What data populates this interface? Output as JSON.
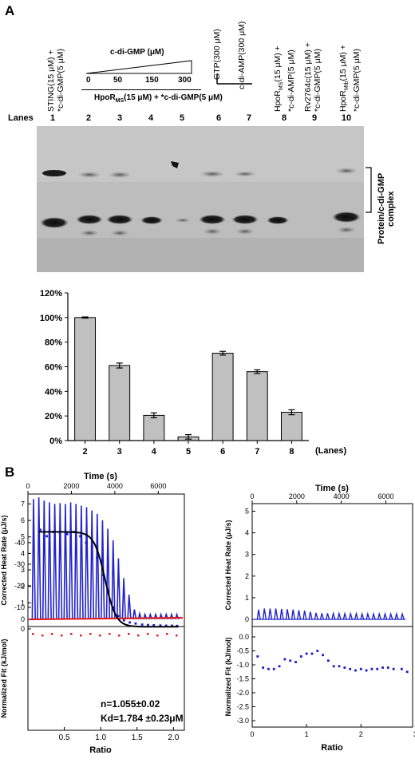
{
  "panel_a": {
    "label": "A",
    "lane_headers": [
      {
        "line1": "STING(15 μM) +",
        "line2": "*c-di-GMP(5 μM)"
      },
      {
        "line1": "GTP(300 μM)",
        "line2": ""
      },
      {
        "line1": "c-di-AMP(300 μM)",
        "line2": ""
      },
      {
        "line1": "HpoR",
        "sub": "MS",
        "rest": "(15 μM) +",
        "line2": "*c-di-AMP(5 μM)"
      },
      {
        "line1": "Rv2764c(15 μM) +",
        "line2": "*c-di-GMP(5 μM)"
      },
      {
        "line1": "HpoR",
        "sub": "Mtb",
        "rest": "(15 μM) +",
        "line2": "*c-di-GMP(5 μM)"
      }
    ],
    "titration_title": "c-di-GMP (μM)",
    "titration_ticks": [
      "0",
      "50",
      "150",
      "300"
    ],
    "group_label_pre": "HpoR",
    "group_label_sub": "MS",
    "group_label_post": "(15 μM) + *c-di-GMP(5 μM)",
    "lanes_label": "Lanes",
    "lane_numbers": [
      "1",
      "2",
      "3",
      "4",
      "5",
      "6",
      "7",
      "8",
      "9",
      "10"
    ],
    "complex_label_1": "Protein/c-di-GMP",
    "complex_label_2": "complex"
  },
  "chart_data": [
    {
      "type": "bar",
      "categories": [
        "2",
        "3",
        "4",
        "5",
        "6",
        "7",
        "8"
      ],
      "values": [
        100,
        61,
        20.5,
        3,
        71,
        56,
        23
      ],
      "errors": [
        0.5,
        2,
        2,
        1.8,
        1.5,
        1.5,
        2
      ],
      "yticks": [
        "0%",
        "20%",
        "40%",
        "60%",
        "80%",
        "100%",
        "120%"
      ],
      "ylim": [
        0,
        120
      ],
      "xlabel": "(Lanes)",
      "bar_color": "#c0c0c0"
    }
  ],
  "panel_b": {
    "label": "B",
    "time_label": "Time (s)",
    "time_ticks": [
      "0",
      "2000",
      "4000",
      "6000"
    ],
    "left": {
      "raw_ylabel": "Corrected Heat Rate (μJ/s)",
      "raw_yticks": [
        "0",
        "1",
        "2",
        "3",
        "4",
        "5",
        "6",
        "7"
      ],
      "fit_ylabel": "Normalized Fit (kJ/mol)",
      "fit_yticks": [
        "-40",
        "-30",
        "-20",
        "-10",
        "0"
      ],
      "ratio_ticks": [
        "0.5",
        "1.0",
        "1.5",
        "2.0"
      ],
      "ratio_label": "Ratio",
      "stat_n": "n=1.055±0.02",
      "stat_kd": "Kd=1.784 ±0.23μM",
      "peak_color": "#2222cc",
      "baseline_color": "#e02020",
      "point_color": "#1a1acc"
    },
    "right": {
      "raw_ylabel": "Corrected Heat Rate (μJ/s)",
      "raw_yticks": [
        "0",
        "1",
        "2",
        "3",
        "4",
        "5"
      ],
      "fit_ylabel": "Normalized Fit (kJ/mol)",
      "fit_yticks": [
        "0.0",
        "-0.5",
        "-1.0",
        "-1.5",
        "-2.0",
        "-2.5",
        "-3.0"
      ],
      "ratio_ticks": [
        "0",
        "1",
        "2",
        "3"
      ],
      "ratio_label": "Ratio",
      "peak_color": "#2222cc",
      "point_color": "#1a1acc"
    }
  }
}
